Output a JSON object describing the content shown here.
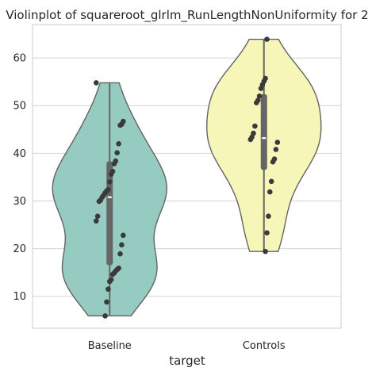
{
  "chart_data": {
    "type": "violin",
    "title": "Violinplot of squareroot_glrlm_RunLengthNonUniformity for 2",
    "xlabel": "target",
    "ylabel": "",
    "categories": [
      "Baseline",
      "Controls"
    ],
    "ylim": [
      3.3,
      67.0
    ],
    "yticks": [
      10,
      20,
      30,
      40,
      50,
      60
    ],
    "grid": "horizontal",
    "colors": {
      "Baseline": "#95cbc0",
      "Controls": "#f7f6b9"
    },
    "series": [
      {
        "category": "Baseline",
        "median": 30.8,
        "q1": 16.5,
        "q3": 38.3,
        "points": [
          54.8,
          46.7,
          46.1,
          45.9,
          42.0,
          40.1,
          38.4,
          37.8,
          36.2,
          35.6,
          34.0,
          32.4,
          32.1,
          31.7,
          31.2,
          30.8,
          30.2,
          29.9,
          26.8,
          25.8,
          22.8,
          20.8,
          18.9,
          15.9,
          15.6,
          15.3,
          14.9,
          14.6,
          13.5,
          13.1,
          11.5,
          8.8,
          5.9
        ]
      },
      {
        "category": "Controls",
        "median": 43.2,
        "q1": 36.5,
        "q3": 52.4,
        "points": [
          63.9,
          55.7,
          55.1,
          54.4,
          53.6,
          52.0,
          51.1,
          50.6,
          45.7,
          44.2,
          43.4,
          42.9,
          42.3,
          40.8,
          38.8,
          38.2,
          34.1,
          31.9,
          26.8,
          23.3,
          19.4
        ]
      }
    ]
  }
}
